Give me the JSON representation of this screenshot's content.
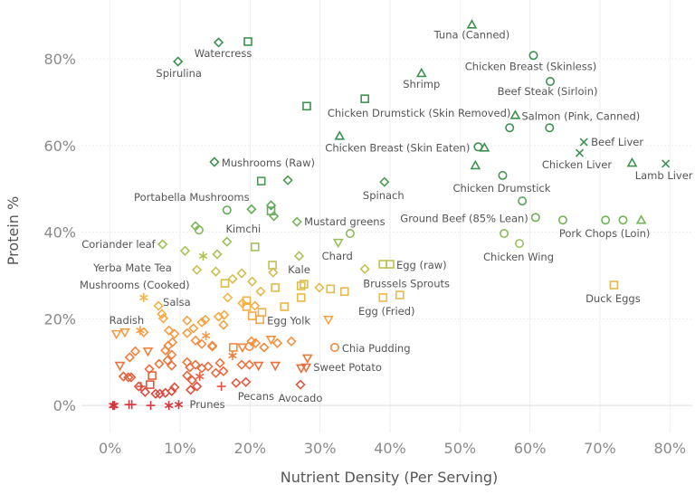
{
  "chart_data": {
    "type": "scatter",
    "title": "",
    "xlabel": "Nutrient Density (Per Serving)",
    "ylabel": "Protein %",
    "xlim": [
      -4.1,
      83.2
    ],
    "ylim": [
      -7.7,
      93.6
    ],
    "x_ticks": [
      0,
      10,
      20,
      30,
      40,
      50,
      60,
      70,
      80
    ],
    "x_tick_labels": [
      "0%",
      "10%",
      "20%",
      "30%",
      "40%",
      "50%",
      "60%",
      "70%",
      "80%"
    ],
    "y_ticks": [
      0,
      20,
      40,
      60,
      80
    ],
    "y_tick_labels": [
      "0%",
      "20%",
      "40%",
      "60%",
      "80%"
    ],
    "grid": true,
    "legend": "none",
    "color_encoding": "protein gradient red (low) to green (high)",
    "color_scale": [
      [
        0,
        "#d6353b"
      ],
      [
        8,
        "#ea6a3e"
      ],
      [
        16,
        "#f5983f"
      ],
      [
        24,
        "#f5b548"
      ],
      [
        30,
        "#d2c04c"
      ],
      [
        37,
        "#9cc25a"
      ],
      [
        46,
        "#5ea95a"
      ],
      [
        56,
        "#3d9150"
      ]
    ],
    "shapes": {
      "d": "diamond",
      "s": "square",
      "t": "triangle-up",
      "v": "triangle-down",
      "c": "circle",
      "x": "x-cross",
      "p": "plus",
      "a": "asterisk"
    },
    "points": [
      [
        51.7,
        87.9,
        "t",
        "Tuna (Canned)"
      ],
      [
        15.5,
        83.8,
        "d",
        "Watercress"
      ],
      [
        19.7,
        84.0,
        "s",
        ""
      ],
      [
        9.7,
        79.4,
        "d",
        "Spirulina"
      ],
      [
        60.5,
        80.8,
        "c",
        "Chicken Breast (Skinless)"
      ],
      [
        44.5,
        76.7,
        "t",
        "Shrimp"
      ],
      [
        62.9,
        74.8,
        "c",
        "Beef Steak (Sirloin)"
      ],
      [
        36.4,
        70.8,
        "s",
        "Chicken Drumstick (Skin Removed)"
      ],
      [
        28.1,
        69.1,
        "s",
        ""
      ],
      [
        57.9,
        67.0,
        "t",
        "Salmon (Pink, Canned)"
      ],
      [
        57.1,
        64.1,
        "c",
        ""
      ],
      [
        62.8,
        64.1,
        "c",
        ""
      ],
      [
        32.8,
        62.2,
        "t",
        "Chicken Breast (Skin Eaten)"
      ],
      [
        52.6,
        59.7,
        "c",
        ""
      ],
      [
        53.5,
        59.5,
        "t",
        ""
      ],
      [
        67.7,
        60.8,
        "x",
        "Beef Liver"
      ],
      [
        67.1,
        58.3,
        "x",
        "Chicken Liver"
      ],
      [
        79.4,
        55.8,
        "x",
        "Lamb Liver"
      ],
      [
        74.6,
        56.0,
        "t",
        ""
      ],
      [
        52.2,
        55.4,
        "t",
        ""
      ],
      [
        14.9,
        56.2,
        "d",
        "Mushrooms (Raw)"
      ],
      [
        39.2,
        51.6,
        "d",
        "Spinach"
      ],
      [
        21.6,
        51.8,
        "s",
        ""
      ],
      [
        25.4,
        52.0,
        "d",
        ""
      ],
      [
        56.1,
        53.1,
        "c",
        "Chicken Drumstick"
      ],
      [
        58.9,
        47.2,
        "c",
        ""
      ],
      [
        16.7,
        45.1,
        "c",
        "Portabella Mushrooms"
      ],
      [
        20.2,
        45.3,
        "d",
        ""
      ],
      [
        23.0,
        44.9,
        "s",
        ""
      ],
      [
        23.0,
        46.2,
        "d",
        ""
      ],
      [
        23.4,
        43.7,
        "d",
        ""
      ],
      [
        12.2,
        41.4,
        "d",
        ""
      ],
      [
        12.7,
        40.5,
        "c",
        ""
      ],
      [
        16.7,
        37.8,
        "d",
        "Kimchi"
      ],
      [
        26.7,
        42.4,
        "d",
        "Mustard greens"
      ],
      [
        60.8,
        43.4,
        "c",
        "Ground Beef (85% Lean)"
      ],
      [
        64.7,
        42.8,
        "c",
        ""
      ],
      [
        70.8,
        42.8,
        "c",
        "Pork Chops (Loin)"
      ],
      [
        73.3,
        42.8,
        "c",
        ""
      ],
      [
        75.9,
        42.8,
        "t",
        ""
      ],
      [
        32.6,
        37.6,
        "v",
        "Chard"
      ],
      [
        34.3,
        39.7,
        "c",
        ""
      ],
      [
        58.5,
        37.4,
        "c",
        "Chicken Wing"
      ],
      [
        56.3,
        39.7,
        "c",
        ""
      ],
      [
        7.5,
        37.2,
        "d",
        "Coriander leaf"
      ],
      [
        10.7,
        35.7,
        "d",
        "Yerba Mate Tea"
      ],
      [
        13.3,
        34.5,
        "a",
        ""
      ],
      [
        12.4,
        31.3,
        "d",
        ""
      ],
      [
        20.7,
        36.6,
        "s",
        ""
      ],
      [
        15.3,
        34.9,
        "d",
        ""
      ],
      [
        27.0,
        34.5,
        "d",
        "Kale"
      ],
      [
        23.2,
        32.4,
        "s",
        ""
      ],
      [
        23.3,
        30.7,
        "d",
        ""
      ],
      [
        15.1,
        30.9,
        "d",
        ""
      ],
      [
        17.5,
        29.2,
        "d",
        ""
      ],
      [
        18.8,
        30.5,
        "d",
        ""
      ],
      [
        20.3,
        28.6,
        "d",
        ""
      ],
      [
        21.5,
        26.3,
        "d",
        ""
      ],
      [
        16.4,
        28.2,
        "s",
        ""
      ],
      [
        23.6,
        27.2,
        "s",
        ""
      ],
      [
        27.3,
        27.6,
        "s",
        ""
      ],
      [
        27.7,
        28.0,
        "s",
        ""
      ],
      [
        29.9,
        27.2,
        "d",
        ""
      ],
      [
        31.5,
        26.9,
        "s",
        ""
      ],
      [
        33.5,
        26.3,
        "s",
        ""
      ],
      [
        27.3,
        24.9,
        "s",
        ""
      ],
      [
        36.4,
        31.5,
        "d",
        "Brussels Sprouts"
      ],
      [
        39.0,
        32.6,
        "s",
        ""
      ],
      [
        40.0,
        32.6,
        "s",
        "Egg (raw)"
      ],
      [
        39.0,
        24.9,
        "s",
        "Egg (Fried)"
      ],
      [
        41.4,
        25.5,
        "s",
        ""
      ],
      [
        72.0,
        27.8,
        "s",
        "Duck Eggs"
      ],
      [
        16.8,
        24.9,
        "d",
        ""
      ],
      [
        19.5,
        24.2,
        "s",
        ""
      ],
      [
        18.9,
        23.6,
        "d",
        ""
      ],
      [
        19.5,
        22.8,
        "s",
        ""
      ],
      [
        20.7,
        23.0,
        "d",
        ""
      ],
      [
        21.7,
        21.5,
        "s",
        ""
      ],
      [
        24.9,
        22.8,
        "s",
        ""
      ],
      [
        20.3,
        20.7,
        "s",
        ""
      ],
      [
        21.4,
        19.8,
        "s",
        "Egg Yolk"
      ],
      [
        31.2,
        19.8,
        "v",
        ""
      ],
      [
        15.5,
        20.5,
        "d",
        ""
      ],
      [
        16.3,
        20.9,
        "d",
        ""
      ],
      [
        16.2,
        18.6,
        "d",
        ""
      ],
      [
        4.8,
        24.9,
        "a",
        "Mushrooms (Cooked)"
      ],
      [
        6.9,
        23.0,
        "d",
        "Salsa"
      ],
      [
        7.4,
        21.1,
        "d",
        ""
      ],
      [
        7.6,
        20.1,
        "d",
        ""
      ],
      [
        0.9,
        16.5,
        "v",
        ""
      ],
      [
        2.1,
        16.9,
        "v",
        "Radish"
      ],
      [
        4.3,
        17.3,
        "a",
        ""
      ],
      [
        4.8,
        16.9,
        "d",
        ""
      ],
      [
        11.0,
        19.6,
        "d",
        ""
      ],
      [
        13.6,
        19.8,
        "d",
        ""
      ],
      [
        13.1,
        19.2,
        "d",
        ""
      ],
      [
        11.9,
        17.8,
        "d",
        ""
      ],
      [
        11.0,
        16.7,
        "d",
        ""
      ],
      [
        8.4,
        17.3,
        "d",
        ""
      ],
      [
        9.2,
        16.5,
        "d",
        ""
      ],
      [
        8.9,
        14.6,
        "d",
        ""
      ],
      [
        8.3,
        13.8,
        "d",
        ""
      ],
      [
        13.7,
        16.1,
        "a",
        ""
      ],
      [
        12.2,
        15.0,
        "d",
        ""
      ],
      [
        13.1,
        14.2,
        "d",
        ""
      ],
      [
        14.6,
        13.8,
        "d",
        ""
      ],
      [
        3.6,
        12.5,
        "d",
        ""
      ],
      [
        2.8,
        11.1,
        "d",
        ""
      ],
      [
        5.4,
        12.5,
        "v",
        ""
      ],
      [
        7.9,
        12.7,
        "d",
        ""
      ],
      [
        8.8,
        11.7,
        "d",
        ""
      ],
      [
        8.2,
        10.4,
        "d",
        ""
      ],
      [
        8.8,
        9.2,
        "d",
        ""
      ],
      [
        1.4,
        9.2,
        "v",
        ""
      ],
      [
        7.0,
        9.6,
        "d",
        ""
      ],
      [
        5.6,
        8.4,
        "d",
        ""
      ],
      [
        1.9,
        6.7,
        "d",
        ""
      ],
      [
        2.6,
        6.5,
        "d",
        ""
      ],
      [
        3.0,
        6.5,
        "d",
        ""
      ],
      [
        4.1,
        4.4,
        "d",
        ""
      ],
      [
        5.0,
        3.1,
        "d",
        ""
      ],
      [
        6.0,
        6.9,
        "s",
        ""
      ],
      [
        5.7,
        4.8,
        "s",
        ""
      ],
      [
        4.4,
        4.4,
        "p",
        ""
      ],
      [
        6.5,
        2.7,
        "d",
        ""
      ],
      [
        7.1,
        2.7,
        "d",
        ""
      ],
      [
        7.9,
        2.9,
        "d",
        ""
      ],
      [
        8.8,
        3.3,
        "d",
        ""
      ],
      [
        9.2,
        4.2,
        "d",
        ""
      ],
      [
        11.0,
        10.0,
        "d",
        ""
      ],
      [
        11.4,
        8.8,
        "d",
        ""
      ],
      [
        11.0,
        6.9,
        "d",
        ""
      ],
      [
        11.7,
        5.8,
        "d",
        ""
      ],
      [
        12.8,
        6.7,
        "a",
        ""
      ],
      [
        12.2,
        9.4,
        "d",
        ""
      ],
      [
        13.1,
        8.6,
        "d",
        ""
      ],
      [
        14.0,
        9.0,
        "d",
        ""
      ],
      [
        12.4,
        4.4,
        "d",
        ""
      ],
      [
        11.5,
        3.6,
        "d",
        ""
      ],
      [
        32.1,
        13.4,
        "c",
        "Chia Pudding"
      ],
      [
        17.6,
        13.4,
        "s",
        ""
      ],
      [
        18.9,
        13.4,
        "v",
        ""
      ],
      [
        19.9,
        13.6,
        "c",
        ""
      ],
      [
        20.2,
        14.8,
        "d",
        ""
      ],
      [
        20.8,
        14.4,
        "d",
        ""
      ],
      [
        22.0,
        13.4,
        "d",
        ""
      ],
      [
        23.0,
        15.2,
        "v",
        ""
      ],
      [
        23.9,
        14.4,
        "d",
        ""
      ],
      [
        25.9,
        14.8,
        "d",
        ""
      ],
      [
        14.6,
        13.6,
        "d",
        ""
      ],
      [
        17.5,
        11.5,
        "a",
        ""
      ],
      [
        18.8,
        9.4,
        "d",
        ""
      ],
      [
        19.9,
        9.4,
        "d",
        ""
      ],
      [
        21.2,
        9.2,
        "v",
        ""
      ],
      [
        23.6,
        9.2,
        "v",
        ""
      ],
      [
        28.2,
        10.9,
        "v",
        ""
      ],
      [
        28.0,
        8.8,
        "v",
        "Sweet Potato"
      ],
      [
        27.3,
        8.6,
        "v",
        ""
      ],
      [
        15.7,
        9.8,
        "d",
        ""
      ],
      [
        15.1,
        7.5,
        "d",
        ""
      ],
      [
        16.2,
        7.9,
        "d",
        ""
      ],
      [
        15.9,
        4.4,
        "p",
        ""
      ],
      [
        18.0,
        5.2,
        "d",
        "Pecans"
      ],
      [
        19.4,
        5.4,
        "d",
        ""
      ],
      [
        27.2,
        4.8,
        "d",
        "Avocado"
      ],
      [
        0.4,
        0.0,
        "a",
        ""
      ],
      [
        0.6,
        0.0,
        "a",
        ""
      ],
      [
        2.7,
        0.2,
        "p",
        ""
      ],
      [
        3.1,
        0.2,
        "p",
        ""
      ],
      [
        5.8,
        0.0,
        "p",
        ""
      ],
      [
        8.4,
        0.0,
        "a",
        ""
      ],
      [
        9.8,
        0.2,
        "a",
        "Prunes"
      ]
    ]
  }
}
